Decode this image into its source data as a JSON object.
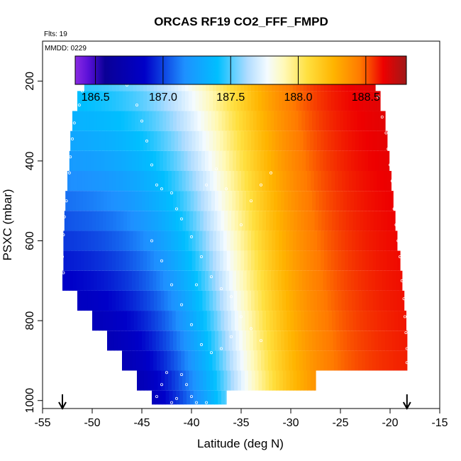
{
  "chart_data": {
    "type": "heatmap",
    "title": "ORCAS RF19 CO2_FFF_FMPD",
    "subtitle_flights": "Flts: 19",
    "subtitle_date": "MMDD: 0229",
    "xlabel": "Latitude (deg N)",
    "ylabel": "PSXC (mbar)",
    "xlim": [
      -55,
      -15
    ],
    "ylim": [
      1020,
      100
    ],
    "x_ticks": [
      -55,
      -50,
      -45,
      -40,
      -35,
      -30,
      -25,
      -20,
      -15
    ],
    "x_tick_labels": [
      "-55",
      "-50",
      "-45",
      "-40",
      "-35",
      "-30",
      "-25",
      "-20",
      "-15"
    ],
    "y_ticks": [
      200,
      400,
      600,
      800,
      1000
    ],
    "y_tick_labels": [
      "200",
      "400",
      "600",
      "800",
      "1000"
    ],
    "colorbar": {
      "range": [
        186.35,
        188.8
      ],
      "ticks": [
        186.5,
        187.0,
        187.5,
        188.0,
        188.5
      ],
      "tick_labels": [
        "186.5",
        "187.0",
        "187.5",
        "188.0",
        "188.5"
      ]
    },
    "arrows_at_lat": [
      -53,
      -18.3
    ],
    "bands": [
      {
        "p_top": 175,
        "p_bot": 225,
        "lat_min": -50.8,
        "lat_max": -21.5
      },
      {
        "p_top": 225,
        "p_bot": 275,
        "lat_min": -51.5,
        "lat_max": -21.0
      },
      {
        "p_top": 275,
        "p_bot": 325,
        "lat_min": -52.0,
        "lat_max": -20.5
      },
      {
        "p_top": 325,
        "p_bot": 375,
        "lat_min": -52.2,
        "lat_max": -20.3
      },
      {
        "p_top": 375,
        "p_bot": 425,
        "lat_min": -52.3,
        "lat_max": -20.1
      },
      {
        "p_top": 425,
        "p_bot": 475,
        "lat_min": -52.5,
        "lat_max": -19.9
      },
      {
        "p_top": 475,
        "p_bot": 525,
        "lat_min": -52.7,
        "lat_max": -19.7
      },
      {
        "p_top": 525,
        "p_bot": 575,
        "lat_min": -52.8,
        "lat_max": -19.5
      },
      {
        "p_top": 575,
        "p_bot": 625,
        "lat_min": -52.9,
        "lat_max": -19.3
      },
      {
        "p_top": 625,
        "p_bot": 675,
        "lat_min": -52.9,
        "lat_max": -19.0
      },
      {
        "p_top": 675,
        "p_bot": 725,
        "lat_min": -53.0,
        "lat_max": -18.8
      },
      {
        "p_top": 725,
        "p_bot": 775,
        "lat_min": -51.5,
        "lat_max": -18.6
      },
      {
        "p_top": 775,
        "p_bot": 825,
        "lat_min": -50.0,
        "lat_max": -18.4
      },
      {
        "p_top": 825,
        "p_bot": 875,
        "lat_min": -48.5,
        "lat_max": -18.3
      },
      {
        "p_top": 875,
        "p_bot": 925,
        "lat_min": -47.0,
        "lat_max": -18.3
      },
      {
        "p_top": 925,
        "p_bot": 975,
        "lat_min": -45.5,
        "lat_max": -27.5
      },
      {
        "p_top": 975,
        "p_bot": 1010,
        "lat_min": -44.0,
        "lat_max": -36.5
      }
    ]
  }
}
